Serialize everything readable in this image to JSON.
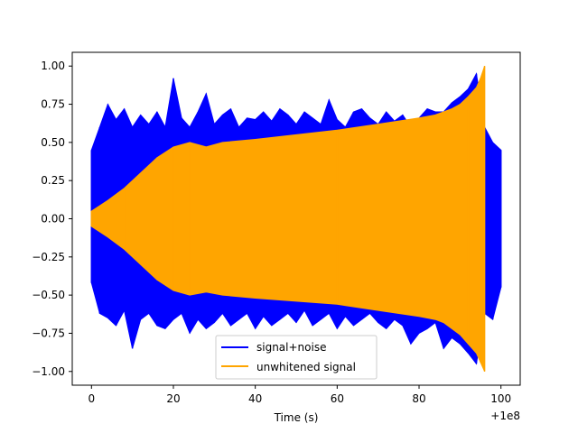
{
  "chart_data": {
    "type": "line",
    "title": "",
    "xlabel": "Time (s)",
    "ylabel": "",
    "x_offset_label": "+1e8",
    "xlim": [
      -4.7,
      104.7
    ],
    "ylim": [
      -1.09,
      1.09
    ],
    "xticks": [
      0,
      20,
      40,
      60,
      80,
      100
    ],
    "xtick_labels": [
      "0",
      "20",
      "40",
      "60",
      "80",
      "100"
    ],
    "yticks": [
      -1.0,
      -0.75,
      -0.5,
      -0.25,
      0.0,
      0.25,
      0.5,
      0.75,
      1.0
    ],
    "ytick_labels": [
      "−1.00",
      "−0.75",
      "−0.50",
      "−0.25",
      "0.00",
      "0.25",
      "0.50",
      "0.75",
      "1.00"
    ],
    "grid": false,
    "legend_position": "lower center",
    "series": [
      {
        "name": "signal+noise",
        "color": "#0000ff",
        "x": [
          0,
          2,
          4,
          6,
          8,
          10,
          12,
          14,
          16,
          18,
          20,
          22,
          24,
          26,
          28,
          30,
          32,
          34,
          36,
          38,
          40,
          42,
          44,
          46,
          48,
          50,
          52,
          54,
          56,
          58,
          60,
          62,
          64,
          66,
          68,
          70,
          72,
          74,
          76,
          78,
          80,
          82,
          84,
          86,
          88,
          90,
          92,
          94,
          96,
          98,
          100
        ],
        "upper": [
          0.45,
          0.6,
          0.75,
          0.65,
          0.72,
          0.6,
          0.68,
          0.62,
          0.7,
          0.6,
          0.92,
          0.66,
          0.6,
          0.7,
          0.82,
          0.62,
          0.68,
          0.72,
          0.6,
          0.66,
          0.65,
          0.7,
          0.64,
          0.72,
          0.68,
          0.62,
          0.7,
          0.66,
          0.62,
          0.78,
          0.65,
          0.6,
          0.7,
          0.72,
          0.66,
          0.62,
          0.7,
          0.64,
          0.68,
          0.6,
          0.66,
          0.72,
          0.7,
          0.7,
          0.76,
          0.8,
          0.85,
          0.95,
          0.6,
          0.5,
          0.45
        ],
        "lower": [
          -0.42,
          -0.62,
          -0.65,
          -0.7,
          -0.6,
          -0.85,
          -0.66,
          -0.62,
          -0.7,
          -0.72,
          -0.66,
          -0.62,
          -0.75,
          -0.66,
          -0.72,
          -0.68,
          -0.62,
          -0.7,
          -0.66,
          -0.62,
          -0.72,
          -0.64,
          -0.7,
          -0.66,
          -0.62,
          -0.68,
          -0.6,
          -0.7,
          -0.66,
          -0.62,
          -0.72,
          -0.64,
          -0.7,
          -0.66,
          -0.62,
          -0.68,
          -0.72,
          -0.66,
          -0.7,
          -0.82,
          -0.75,
          -0.72,
          -0.68,
          -0.85,
          -0.78,
          -0.82,
          -0.88,
          -0.95,
          -0.62,
          -0.66,
          -0.45
        ]
      },
      {
        "name": "unwhitened signal",
        "color": "#ffa500",
        "x": [
          0,
          4,
          8,
          12,
          16,
          20,
          24,
          28,
          32,
          40,
          50,
          60,
          70,
          80,
          84,
          86,
          88,
          90,
          92,
          94,
          95,
          96
        ],
        "upper": [
          0.05,
          0.12,
          0.2,
          0.3,
          0.4,
          0.47,
          0.5,
          0.47,
          0.5,
          0.52,
          0.55,
          0.58,
          0.62,
          0.66,
          0.68,
          0.7,
          0.72,
          0.75,
          0.8,
          0.86,
          0.92,
          1.0
        ],
        "lower": [
          -0.05,
          -0.12,
          -0.2,
          -0.3,
          -0.4,
          -0.47,
          -0.5,
          -0.48,
          -0.5,
          -0.52,
          -0.54,
          -0.56,
          -0.6,
          -0.64,
          -0.66,
          -0.68,
          -0.72,
          -0.76,
          -0.82,
          -0.88,
          -0.94,
          -1.0
        ]
      }
    ]
  }
}
